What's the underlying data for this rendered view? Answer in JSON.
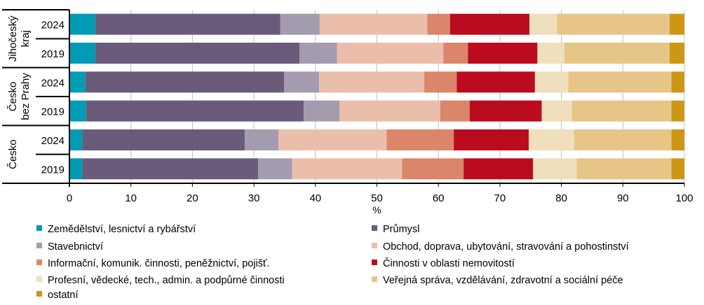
{
  "chart_data": {
    "type": "bar",
    "orientation": "horizontal",
    "stacked": true,
    "xlabel": "%",
    "xlim": [
      0,
      100
    ],
    "xticks": [
      "0",
      "10",
      "20",
      "30",
      "40",
      "50",
      "60",
      "70",
      "80",
      "90",
      "100"
    ],
    "grid": true,
    "legend_position": "bottom",
    "groups": [
      {
        "label": "Jihočeský kraj",
        "label_lines": [
          "Jihočeský",
          "kraj"
        ],
        "categories": [
          "2024",
          "2019"
        ]
      },
      {
        "label": "Česko bez Prahy",
        "label_lines": [
          "Česko",
          "bez Prahy"
        ],
        "categories": [
          "2024",
          "2019"
        ]
      },
      {
        "label": "Česko",
        "label_lines": [
          "Česko"
        ],
        "categories": [
          "2024",
          "2019"
        ]
      }
    ],
    "series": [
      {
        "name": "Zemědělství, lesnictví a rybářství",
        "color": "#009BB4",
        "values": [
          4.2,
          4.2,
          2.6,
          2.7,
          2.1,
          2.1
        ]
      },
      {
        "name": "Průmysl",
        "color": "#6A5B7B",
        "values": [
          30.1,
          33.2,
          32.3,
          35.4,
          26.4,
          28.6
        ]
      },
      {
        "name": "Stavebnictví",
        "color": "#A59BAF",
        "values": [
          6.4,
          6.1,
          5.7,
          5.8,
          5.5,
          5.5
        ]
      },
      {
        "name": "Obchod, doprava, ubytování, stravování a pohostinství",
        "color": "#EBBEAC",
        "values": [
          17.5,
          17.3,
          17.1,
          16.4,
          17.6,
          17.9
        ]
      },
      {
        "name": "Informační, komunik. činnosti, peněžnictví, pojišť.",
        "color": "#DB856B",
        "values": [
          3.7,
          4.0,
          5.3,
          4.8,
          10.9,
          10.0
        ]
      },
      {
        "name": "Činnosti v oblasti nemovitostí",
        "color": "#BB0B1F",
        "values": [
          12.9,
          11.3,
          12.7,
          11.7,
          12.2,
          11.3
        ]
      },
      {
        "name": "Profesní, vědecké, tech., admin. a podpůrné činnosti",
        "color": "#F0DFBC",
        "values": [
          4.5,
          4.4,
          5.4,
          4.9,
          7.4,
          7.1
        ]
      },
      {
        "name": "Veřejná správa, vzdělávání, zdravotní a sociální péče",
        "color": "#E6C586",
        "values": [
          18.3,
          17.1,
          16.8,
          16.2,
          15.8,
          15.4
        ]
      },
      {
        "name": "ostatní",
        "color": "#CD9715",
        "values": [
          2.4,
          2.4,
          2.1,
          2.1,
          2.1,
          2.1
        ]
      }
    ]
  }
}
